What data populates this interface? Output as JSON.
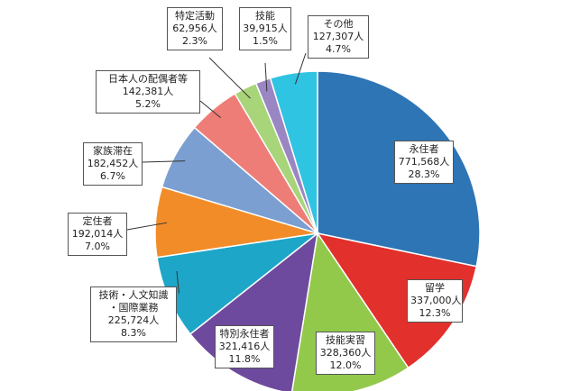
{
  "chart_data": {
    "type": "pie",
    "slices": [
      {
        "name": "永住者",
        "count": "771,568人",
        "percent": "28.3%",
        "value": 28.3,
        "color": "#2e75b6"
      },
      {
        "name": "留学",
        "count": "337,000人",
        "percent": "12.3%",
        "value": 12.3,
        "color": "#e2302d"
      },
      {
        "name": "技能実習",
        "count": "328,360人",
        "percent": "12.0%",
        "value": 12.0,
        "color": "#92c94b"
      },
      {
        "name": "特別永住者",
        "count": "321,416人",
        "percent": "11.8%",
        "value": 11.8,
        "color": "#6e4a9e"
      },
      {
        "name": "技術・人文知識\n・国際業務",
        "count": "225,724人",
        "percent": "8.3%",
        "value": 8.3,
        "color": "#1ea6c8"
      },
      {
        "name": "定住者",
        "count": "192,014人",
        "percent": "7.0%",
        "value": 7.0,
        "color": "#f28c28"
      },
      {
        "name": "家族滞在",
        "count": "182,452人",
        "percent": "6.7%",
        "value": 6.7,
        "color": "#7b9fd1"
      },
      {
        "name": "日本人の配偶者等",
        "count": "142,381人",
        "percent": "5.2%",
        "value": 5.2,
        "color": "#ee7d77"
      },
      {
        "name": "特定活動",
        "count": "62,956人",
        "percent": "2.3%",
        "value": 2.3,
        "color": "#a8d47a"
      },
      {
        "name": "技能",
        "count": "39,915人",
        "percent": "1.5%",
        "value": 1.5,
        "color": "#9b86c4"
      },
      {
        "name": "その他",
        "count": "127,307人",
        "percent": "4.7%",
        "value": 4.7,
        "color": "#2fc4e2"
      }
    ]
  }
}
